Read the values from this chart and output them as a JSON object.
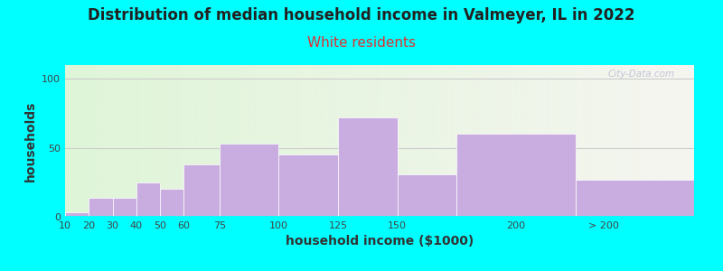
{
  "title": "Distribution of median household income in Valmeyer, IL in 2022",
  "subtitle": "White residents",
  "xlabel": "household income ($1000)",
  "ylabel": "households",
  "background_color": "#00FFFF",
  "bar_color": "#C9ADE0",
  "bar_edge_color": "#FFFFFF",
  "bar_left_edges": [
    10,
    20,
    30,
    40,
    50,
    60,
    75,
    100,
    125,
    150,
    175,
    225
  ],
  "bar_widths": [
    10,
    10,
    10,
    10,
    10,
    15,
    25,
    25,
    25,
    25,
    50,
    50
  ],
  "values": [
    3,
    14,
    14,
    25,
    20,
    38,
    53,
    45,
    72,
    31,
    60,
    27
  ],
  "xlim": [
    10,
    275
  ],
  "ylim": [
    0,
    110
  ],
  "yticks": [
    0,
    50,
    100
  ],
  "xtick_positions": [
    10,
    20,
    30,
    40,
    50,
    60,
    75,
    100,
    125,
    150,
    200,
    237
  ],
  "xtick_labels": [
    "10",
    "20",
    "30",
    "40",
    "50",
    "60",
    "75",
    "100",
    "125",
    "150",
    "200",
    "> 200"
  ],
  "title_fontsize": 12,
  "subtitle_fontsize": 11,
  "axis_label_fontsize": 10,
  "tick_fontsize": 8,
  "plot_bg_gradient_left": "#dff5d8",
  "plot_bg_gradient_right": "#f5f5f0",
  "watermark_text": "City-Data.com"
}
